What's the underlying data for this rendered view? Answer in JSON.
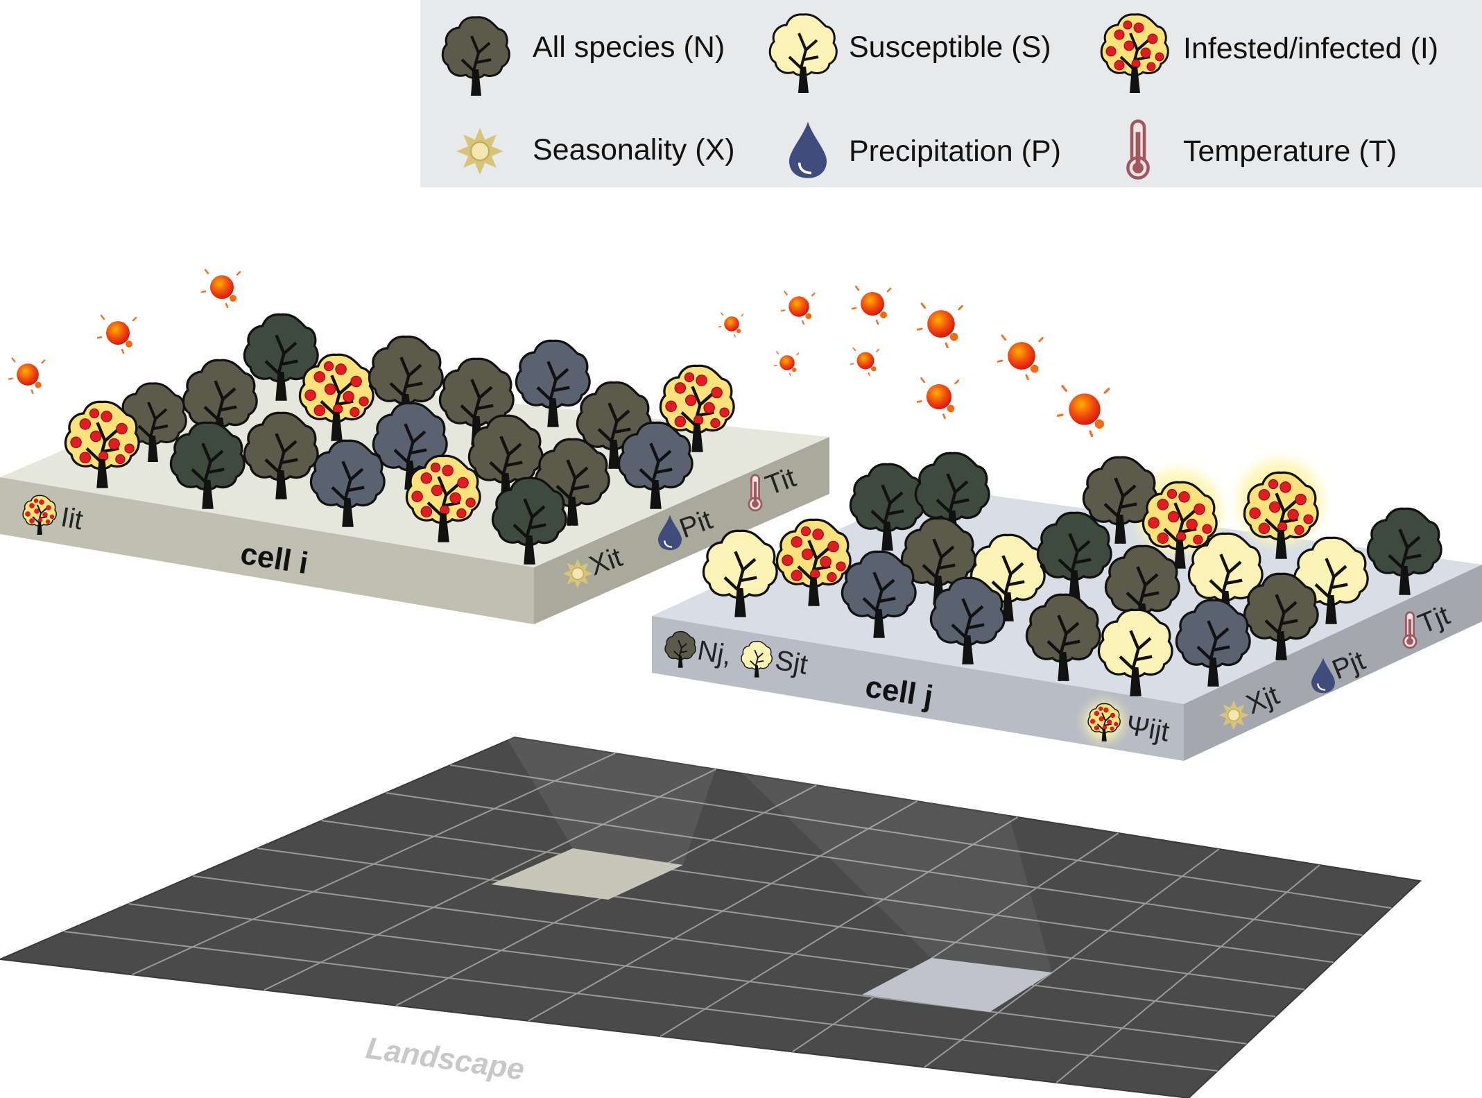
{
  "legend": {
    "items": [
      {
        "text": "All species (N)",
        "icon": "tree-all-species-icon"
      },
      {
        "text": "Susceptible (S)",
        "icon": "tree-susceptible-icon"
      },
      {
        "text": "Infested/infected (I)",
        "icon": "tree-infested-icon"
      },
      {
        "text": "Seasonality (X)",
        "icon": "sun-icon"
      },
      {
        "text": "Precipitation (P)",
        "icon": "droplet-icon"
      },
      {
        "text": "Temperature (T)",
        "icon": "thermometer-icon"
      }
    ]
  },
  "cell_i": {
    "title": "cell i",
    "infested_label": "Iit",
    "seasonality_label": "Xit",
    "precip_label": "Pit",
    "temp_label": "Tit"
  },
  "cell_j": {
    "title": "cell j",
    "species_label": "Nj,",
    "susceptible_label": "Sjt",
    "psi_label": "Ψijt",
    "seasonality_label": "Xjt",
    "precip_label": "Pjt",
    "temp_label": "Tjt"
  },
  "landscape": {
    "label": "Landscape"
  },
  "colors": {
    "legend_bg": "#e8e9ea",
    "tree_dark": "#5b5a4b",
    "tree_green": "#3f4a3f",
    "tree_gray": "#5a6270",
    "tree_susceptible": "#fbf2b6",
    "infested_dot": "#e31b23",
    "sun": "#d7c47a",
    "drop": "#3e4d7e",
    "thermo": "#a0585f",
    "cell_i_top": "#e5e7dc",
    "cell_j_top": "#d8dde6",
    "landscape": "#4a4a4a"
  }
}
